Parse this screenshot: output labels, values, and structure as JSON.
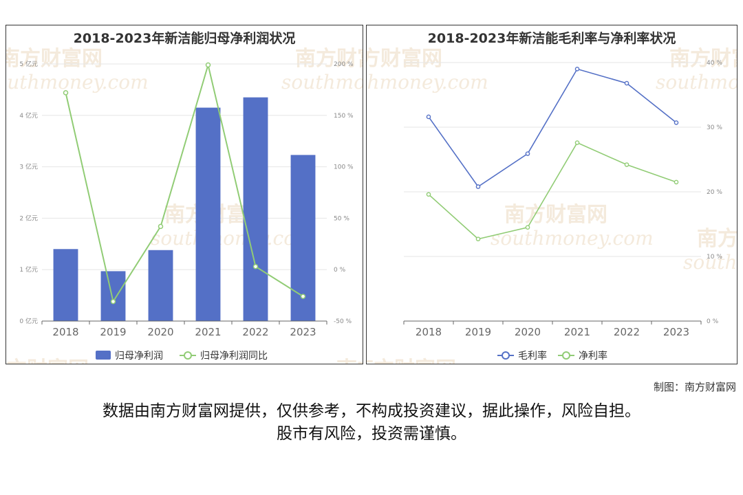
{
  "watermark": {
    "cn": "南方财富网",
    "en": "southmoney.com"
  },
  "chart_data": [
    {
      "type": "bar",
      "title": "2018-2023年新洁能归母净利润状况",
      "categories": [
        "2018",
        "2019",
        "2020",
        "2021",
        "2022",
        "2023"
      ],
      "y_left": {
        "ticks": [
          "0 亿元",
          "1 亿元",
          "2 亿元",
          "3 亿元",
          "4 亿元",
          "5 亿元"
        ],
        "range": [
          0,
          5
        ]
      },
      "y_right": {
        "ticks": [
          "-50 %",
          "0 %",
          "50 %",
          "100 %",
          "150 %",
          "200 %"
        ],
        "range": [
          -50,
          200
        ]
      },
      "series": [
        {
          "name": "归母净利润",
          "type": "bar",
          "axis": "left",
          "color": "#5470c6",
          "values": [
            1.4,
            0.97,
            1.38,
            4.15,
            4.35,
            3.23
          ]
        },
        {
          "name": "归母净利润同比",
          "type": "line",
          "axis": "right",
          "color": "#91cc75",
          "values": [
            172,
            -31,
            42,
            199,
            3,
            -26
          ]
        }
      ],
      "legend_position": "bottom-center",
      "grid": true
    },
    {
      "type": "line",
      "title": "2018-2023年新洁能毛利率与净利率状况",
      "categories": [
        "2018",
        "2019",
        "2020",
        "2021",
        "2022",
        "2023"
      ],
      "y_right": {
        "ticks": [
          "0 %",
          "10 %",
          "20 %",
          "30 %",
          "40 %"
        ],
        "range": [
          0,
          40
        ]
      },
      "series": [
        {
          "name": "毛利率",
          "color": "#5470c6",
          "values": [
            31.6,
            20.8,
            25.9,
            39.0,
            36.8,
            30.7
          ]
        },
        {
          "name": "净利率",
          "color": "#91cc75",
          "values": [
            19.6,
            12.7,
            14.5,
            27.6,
            24.2,
            21.5
          ]
        }
      ],
      "legend_position": "bottom-center",
      "grid": true
    }
  ],
  "footer": {
    "credit": "制图：南方财富网",
    "disclaimer_line1": "数据由南方财富网提供，仅供参考，不构成投资建议，据此操作，风险自担。",
    "disclaimer_line2": "股市有风险，投资需谨慎。"
  }
}
